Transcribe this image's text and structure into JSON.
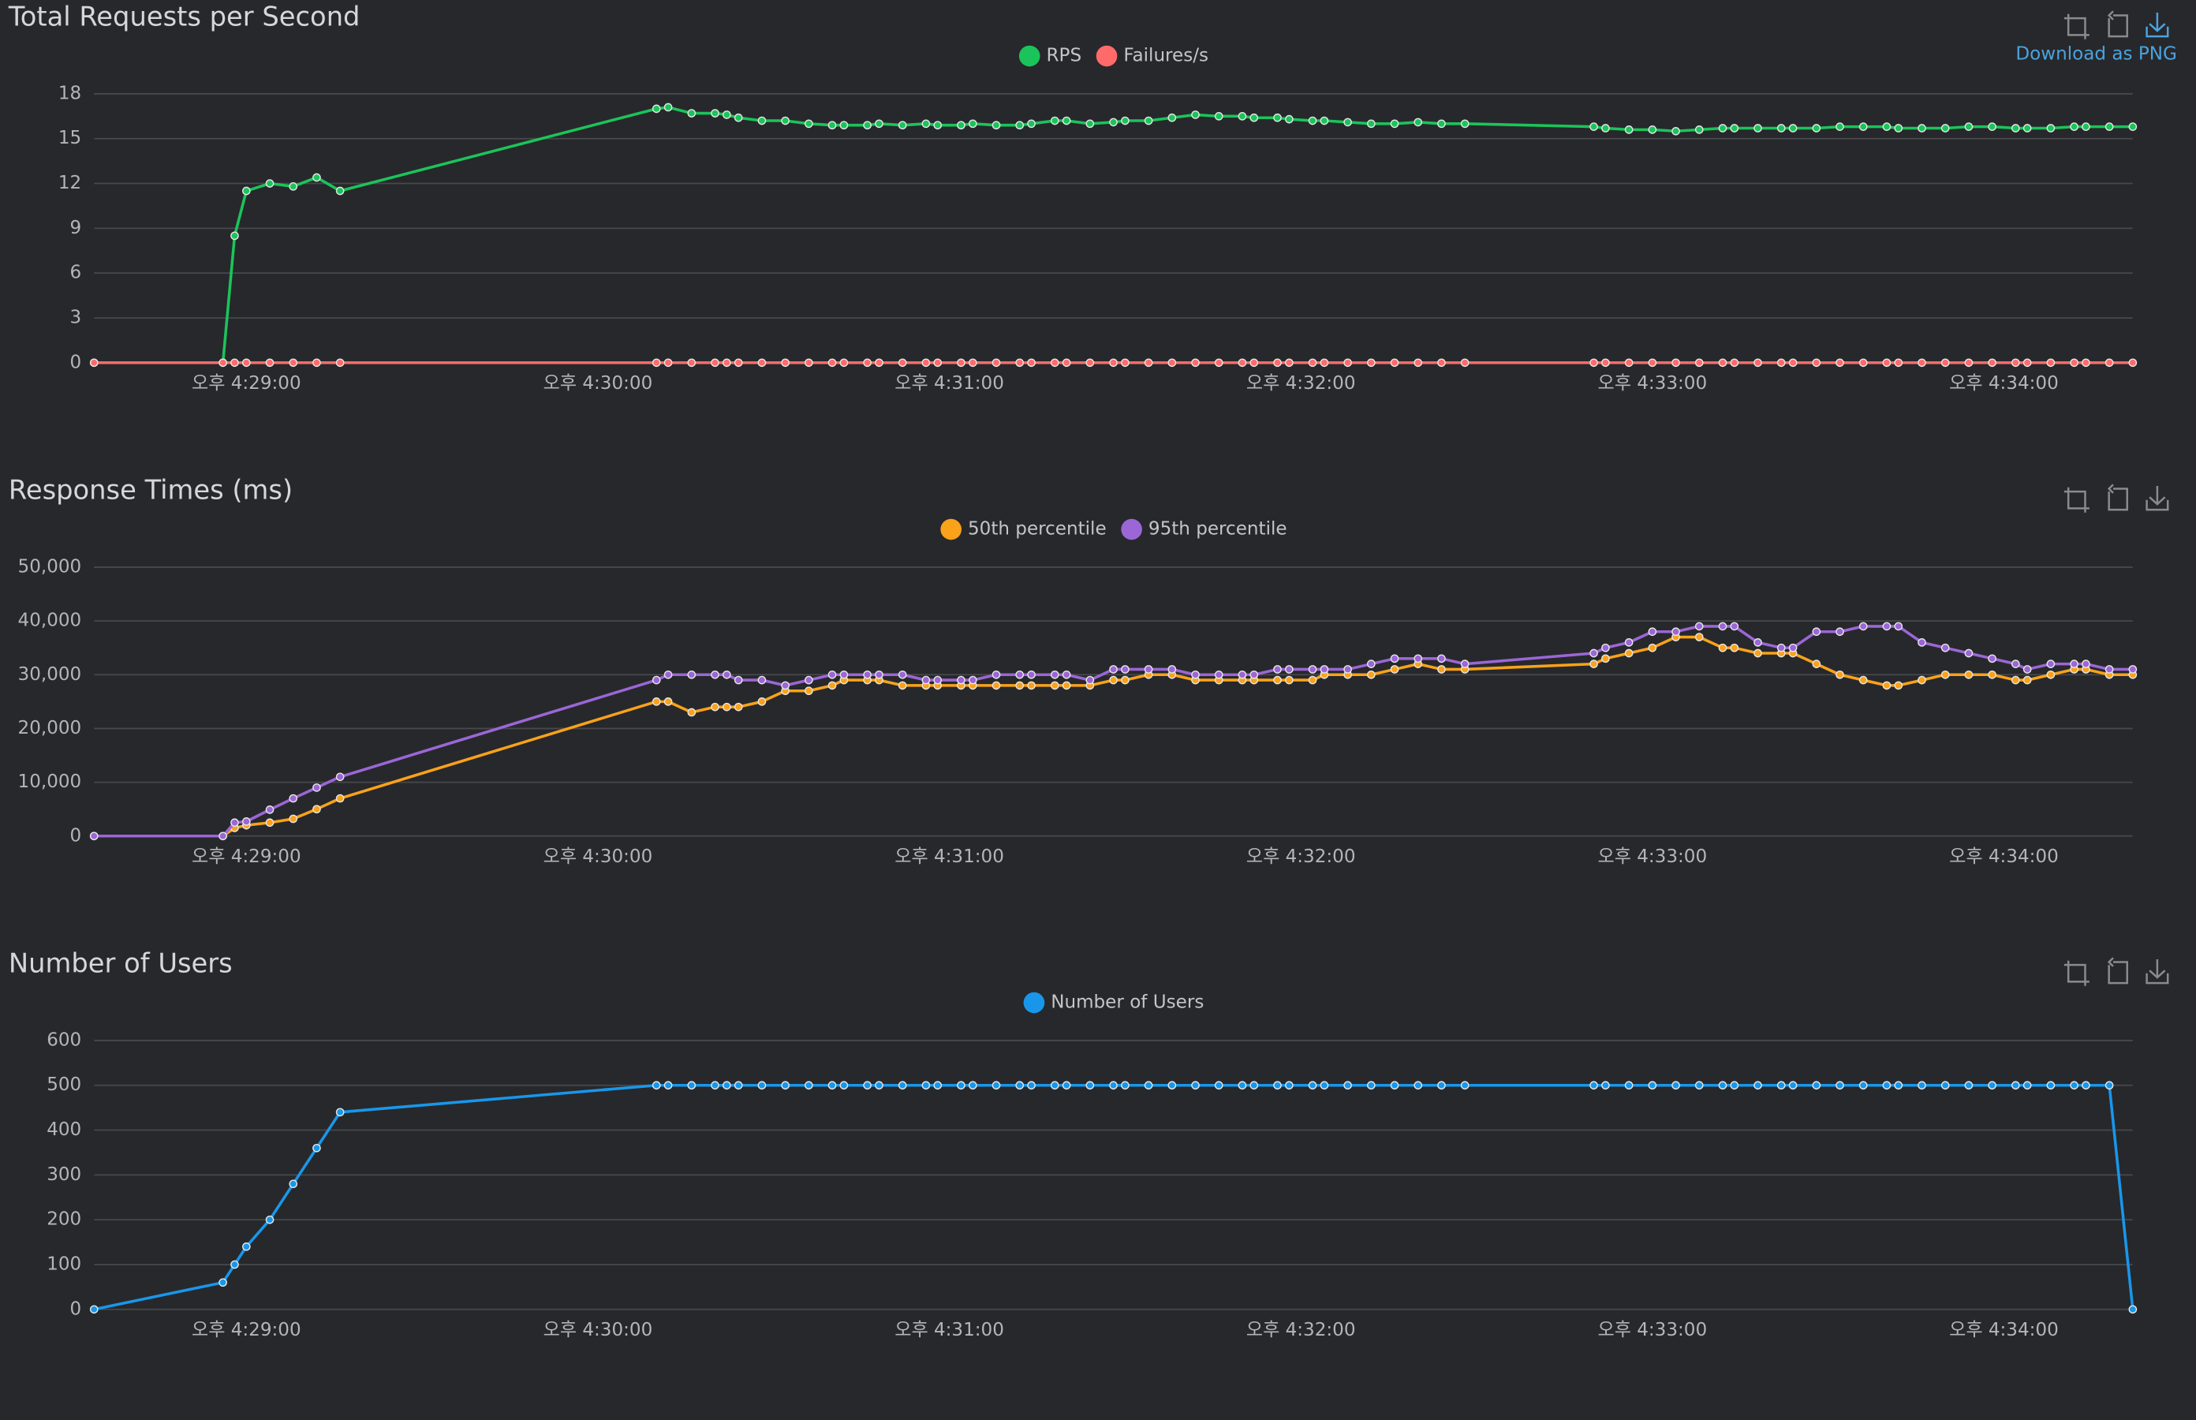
{
  "download_label": "Download as PNG",
  "chart_data": [
    {
      "type": "line",
      "title": "Total Requests per Second",
      "grid": true,
      "legend": "top",
      "x": [
        "16:28:34",
        "16:28:56",
        "16:28:58",
        "16:29:00",
        "16:29:04",
        "16:29:08",
        "16:29:12",
        "16:29:16",
        "16:30:10",
        "16:30:12",
        "16:30:16",
        "16:30:20",
        "16:30:22",
        "16:30:24",
        "16:30:28",
        "16:30:32",
        "16:30:36",
        "16:30:40",
        "16:30:42",
        "16:30:46",
        "16:30:48",
        "16:30:52",
        "16:30:56",
        "16:30:58",
        "16:31:02",
        "16:31:04",
        "16:31:08",
        "16:31:12",
        "16:31:14",
        "16:31:18",
        "16:31:20",
        "16:31:24",
        "16:31:28",
        "16:31:30",
        "16:31:34",
        "16:31:38",
        "16:31:42",
        "16:31:46",
        "16:31:50",
        "16:31:52",
        "16:31:56",
        "16:31:58",
        "16:32:02",
        "16:32:04",
        "16:32:08",
        "16:32:12",
        "16:32:16",
        "16:32:20",
        "16:32:24",
        "16:32:28",
        "16:32:50",
        "16:32:52",
        "16:32:56",
        "16:33:00",
        "16:33:04",
        "16:33:08",
        "16:33:12",
        "16:33:14",
        "16:33:18",
        "16:33:22",
        "16:33:24",
        "16:33:28",
        "16:33:32",
        "16:33:36",
        "16:33:40",
        "16:33:42",
        "16:33:46",
        "16:33:50",
        "16:33:54",
        "16:33:58",
        "16:34:02",
        "16:34:04",
        "16:34:08",
        "16:34:12",
        "16:34:14",
        "16:34:18",
        "16:34:22"
      ],
      "xlim": [
        "16:28:34",
        "16:34:22"
      ],
      "xticks": [
        {
          "value": "16:29:00",
          "label": "오후 4:29:00"
        },
        {
          "value": "16:30:00",
          "label": "오후 4:30:00"
        },
        {
          "value": "16:31:00",
          "label": "오후 4:31:00"
        },
        {
          "value": "16:32:00",
          "label": "오후 4:32:00"
        },
        {
          "value": "16:33:00",
          "label": "오후 4:33:00"
        },
        {
          "value": "16:34:00",
          "label": "오후 4:34:00"
        }
      ],
      "ylim": [
        0,
        18
      ],
      "yticks": [
        0,
        3,
        6,
        9,
        12,
        15,
        18
      ],
      "series": [
        {
          "name": "RPS",
          "color": "#1bc45a",
          "values": [
            0,
            0,
            8.5,
            11.5,
            12,
            11.8,
            12.4,
            11.5,
            17,
            17.1,
            16.7,
            16.7,
            16.6,
            16.4,
            16.2,
            16.2,
            16,
            15.9,
            15.9,
            15.9,
            16,
            15.9,
            16,
            15.9,
            15.9,
            16,
            15.9,
            15.9,
            16,
            16.2,
            16.2,
            16,
            16.1,
            16.2,
            16.2,
            16.4,
            16.6,
            16.5,
            16.5,
            16.4,
            16.4,
            16.3,
            16.2,
            16.2,
            16.1,
            16,
            16,
            16.1,
            16,
            16,
            15.8,
            15.7,
            15.6,
            15.6,
            15.5,
            15.6,
            15.7,
            15.7,
            15.7,
            15.7,
            15.7,
            15.7,
            15.8,
            15.8,
            15.8,
            15.7,
            15.7,
            15.7,
            15.8,
            15.8,
            15.7,
            15.7,
            15.7,
            15.8,
            15.8,
            15.8,
            15.8
          ]
        },
        {
          "name": "Failures/s",
          "color": "#ff6b6b",
          "values": [
            0,
            0,
            0,
            0,
            0,
            0,
            0,
            0,
            0,
            0,
            0,
            0,
            0,
            0,
            0,
            0,
            0,
            0,
            0,
            0,
            0,
            0,
            0,
            0,
            0,
            0,
            0,
            0,
            0,
            0,
            0,
            0,
            0,
            0,
            0,
            0,
            0,
            0,
            0,
            0,
            0,
            0,
            0,
            0,
            0,
            0,
            0,
            0,
            0,
            0,
            0,
            0,
            0,
            0,
            0,
            0,
            0,
            0,
            0,
            0,
            0,
            0,
            0,
            0,
            0,
            0,
            0,
            0,
            0,
            0,
            0,
            0,
            0,
            0,
            0,
            0,
            0
          ]
        }
      ]
    },
    {
      "type": "line",
      "title": "Response Times (ms)",
      "grid": true,
      "legend": "top",
      "x": [
        "16:28:34",
        "16:28:56",
        "16:28:58",
        "16:29:00",
        "16:29:04",
        "16:29:08",
        "16:29:12",
        "16:29:16",
        "16:30:10",
        "16:30:12",
        "16:30:16",
        "16:30:20",
        "16:30:22",
        "16:30:24",
        "16:30:28",
        "16:30:32",
        "16:30:36",
        "16:30:40",
        "16:30:42",
        "16:30:46",
        "16:30:48",
        "16:30:52",
        "16:30:56",
        "16:30:58",
        "16:31:02",
        "16:31:04",
        "16:31:08",
        "16:31:12",
        "16:31:14",
        "16:31:18",
        "16:31:20",
        "16:31:24",
        "16:31:28",
        "16:31:30",
        "16:31:34",
        "16:31:38",
        "16:31:42",
        "16:31:46",
        "16:31:50",
        "16:31:52",
        "16:31:56",
        "16:31:58",
        "16:32:02",
        "16:32:04",
        "16:32:08",
        "16:32:12",
        "16:32:16",
        "16:32:20",
        "16:32:24",
        "16:32:28",
        "16:32:50",
        "16:32:52",
        "16:32:56",
        "16:33:00",
        "16:33:04",
        "16:33:08",
        "16:33:12",
        "16:33:14",
        "16:33:18",
        "16:33:22",
        "16:33:24",
        "16:33:28",
        "16:33:32",
        "16:33:36",
        "16:33:40",
        "16:33:42",
        "16:33:46",
        "16:33:50",
        "16:33:54",
        "16:33:58",
        "16:34:02",
        "16:34:04",
        "16:34:08",
        "16:34:12",
        "16:34:14",
        "16:34:18",
        "16:34:22"
      ],
      "xlim": [
        "16:28:34",
        "16:34:22"
      ],
      "xticks": [
        {
          "value": "16:29:00",
          "label": "오후 4:29:00"
        },
        {
          "value": "16:30:00",
          "label": "오후 4:30:00"
        },
        {
          "value": "16:31:00",
          "label": "오후 4:31:00"
        },
        {
          "value": "16:32:00",
          "label": "오후 4:32:00"
        },
        {
          "value": "16:33:00",
          "label": "오후 4:33:00"
        },
        {
          "value": "16:34:00",
          "label": "오후 4:34:00"
        }
      ],
      "ylim": [
        0,
        50000
      ],
      "yticks": [
        0,
        {
          "value": 10000,
          "label": "10,000"
        },
        {
          "value": 20000,
          "label": "20,000"
        },
        {
          "value": 30000,
          "label": "30,000"
        },
        {
          "value": 40000,
          "label": "40,000"
        },
        {
          "value": 50000,
          "label": "50,000"
        }
      ],
      "series": [
        {
          "name": "50th percentile",
          "color": "#f9a21a",
          "values": [
            0,
            0,
            1500,
            2000,
            2500,
            3200,
            5000,
            7000,
            25000,
            25000,
            23000,
            24000,
            24000,
            24000,
            25000,
            27000,
            27000,
            28000,
            29000,
            29000,
            29000,
            28000,
            28000,
            28000,
            28000,
            28000,
            28000,
            28000,
            28000,
            28000,
            28000,
            28000,
            29000,
            29000,
            30000,
            30000,
            29000,
            29000,
            29000,
            29000,
            29000,
            29000,
            29000,
            30000,
            30000,
            30000,
            31000,
            32000,
            31000,
            31000,
            32000,
            33000,
            34000,
            35000,
            37000,
            37000,
            35000,
            35000,
            34000,
            34000,
            34000,
            32000,
            30000,
            29000,
            28000,
            28000,
            29000,
            30000,
            30000,
            30000,
            29000,
            29000,
            30000,
            31000,
            31000,
            30000,
            30000
          ]
        },
        {
          "name": "95th percentile",
          "color": "#9b66d6",
          "values": [
            0,
            0,
            2500,
            2700,
            4900,
            7000,
            9000,
            11000,
            29000,
            30000,
            30000,
            30000,
            30000,
            29000,
            29000,
            28000,
            29000,
            30000,
            30000,
            30000,
            30000,
            30000,
            29000,
            29000,
            29000,
            29000,
            30000,
            30000,
            30000,
            30000,
            30000,
            29000,
            31000,
            31000,
            31000,
            31000,
            30000,
            30000,
            30000,
            30000,
            31000,
            31000,
            31000,
            31000,
            31000,
            32000,
            33000,
            33000,
            33000,
            32000,
            34000,
            35000,
            36000,
            38000,
            38000,
            39000,
            39000,
            39000,
            36000,
            35000,
            35000,
            38000,
            38000,
            39000,
            39000,
            39000,
            36000,
            35000,
            34000,
            33000,
            32000,
            31000,
            32000,
            32000,
            32000,
            31000,
            31000
          ]
        }
      ]
    },
    {
      "type": "line",
      "title": "Number of Users",
      "grid": true,
      "legend": "top",
      "x": [
        "16:28:34",
        "16:28:56",
        "16:28:58",
        "16:29:00",
        "16:29:04",
        "16:29:08",
        "16:29:12",
        "16:29:16",
        "16:30:10",
        "16:30:12",
        "16:30:16",
        "16:30:20",
        "16:30:22",
        "16:30:24",
        "16:30:28",
        "16:30:32",
        "16:30:36",
        "16:30:40",
        "16:30:42",
        "16:30:46",
        "16:30:48",
        "16:30:52",
        "16:30:56",
        "16:30:58",
        "16:31:02",
        "16:31:04",
        "16:31:08",
        "16:31:12",
        "16:31:14",
        "16:31:18",
        "16:31:20",
        "16:31:24",
        "16:31:28",
        "16:31:30",
        "16:31:34",
        "16:31:38",
        "16:31:42",
        "16:31:46",
        "16:31:50",
        "16:31:52",
        "16:31:56",
        "16:31:58",
        "16:32:02",
        "16:32:04",
        "16:32:08",
        "16:32:12",
        "16:32:16",
        "16:32:20",
        "16:32:24",
        "16:32:28",
        "16:32:50",
        "16:32:52",
        "16:32:56",
        "16:33:00",
        "16:33:04",
        "16:33:08",
        "16:33:12",
        "16:33:14",
        "16:33:18",
        "16:33:22",
        "16:33:24",
        "16:33:28",
        "16:33:32",
        "16:33:36",
        "16:33:40",
        "16:33:42",
        "16:33:46",
        "16:33:50",
        "16:33:54",
        "16:33:58",
        "16:34:02",
        "16:34:04",
        "16:34:08",
        "16:34:12",
        "16:34:14",
        "16:34:18",
        "16:34:22"
      ],
      "xlim": [
        "16:28:34",
        "16:34:22"
      ],
      "xticks": [
        {
          "value": "16:29:00",
          "label": "오후 4:29:00"
        },
        {
          "value": "16:30:00",
          "label": "오후 4:30:00"
        },
        {
          "value": "16:31:00",
          "label": "오후 4:31:00"
        },
        {
          "value": "16:32:00",
          "label": "오후 4:32:00"
        },
        {
          "value": "16:33:00",
          "label": "오후 4:33:00"
        },
        {
          "value": "16:34:00",
          "label": "오후 4:34:00"
        }
      ],
      "ylim": [
        0,
        600
      ],
      "yticks": [
        0,
        100,
        200,
        300,
        400,
        500,
        600
      ],
      "series": [
        {
          "name": "Number of Users",
          "color": "#1897ea",
          "values": [
            0,
            60,
            100,
            140,
            200,
            280,
            360,
            440,
            500,
            500,
            500,
            500,
            500,
            500,
            500,
            500,
            500,
            500,
            500,
            500,
            500,
            500,
            500,
            500,
            500,
            500,
            500,
            500,
            500,
            500,
            500,
            500,
            500,
            500,
            500,
            500,
            500,
            500,
            500,
            500,
            500,
            500,
            500,
            500,
            500,
            500,
            500,
            500,
            500,
            500,
            500,
            500,
            500,
            500,
            500,
            500,
            500,
            500,
            500,
            500,
            500,
            500,
            500,
            500,
            500,
            500,
            500,
            500,
            500,
            500,
            500,
            500,
            500,
            500,
            500,
            500,
            0
          ]
        }
      ]
    }
  ]
}
